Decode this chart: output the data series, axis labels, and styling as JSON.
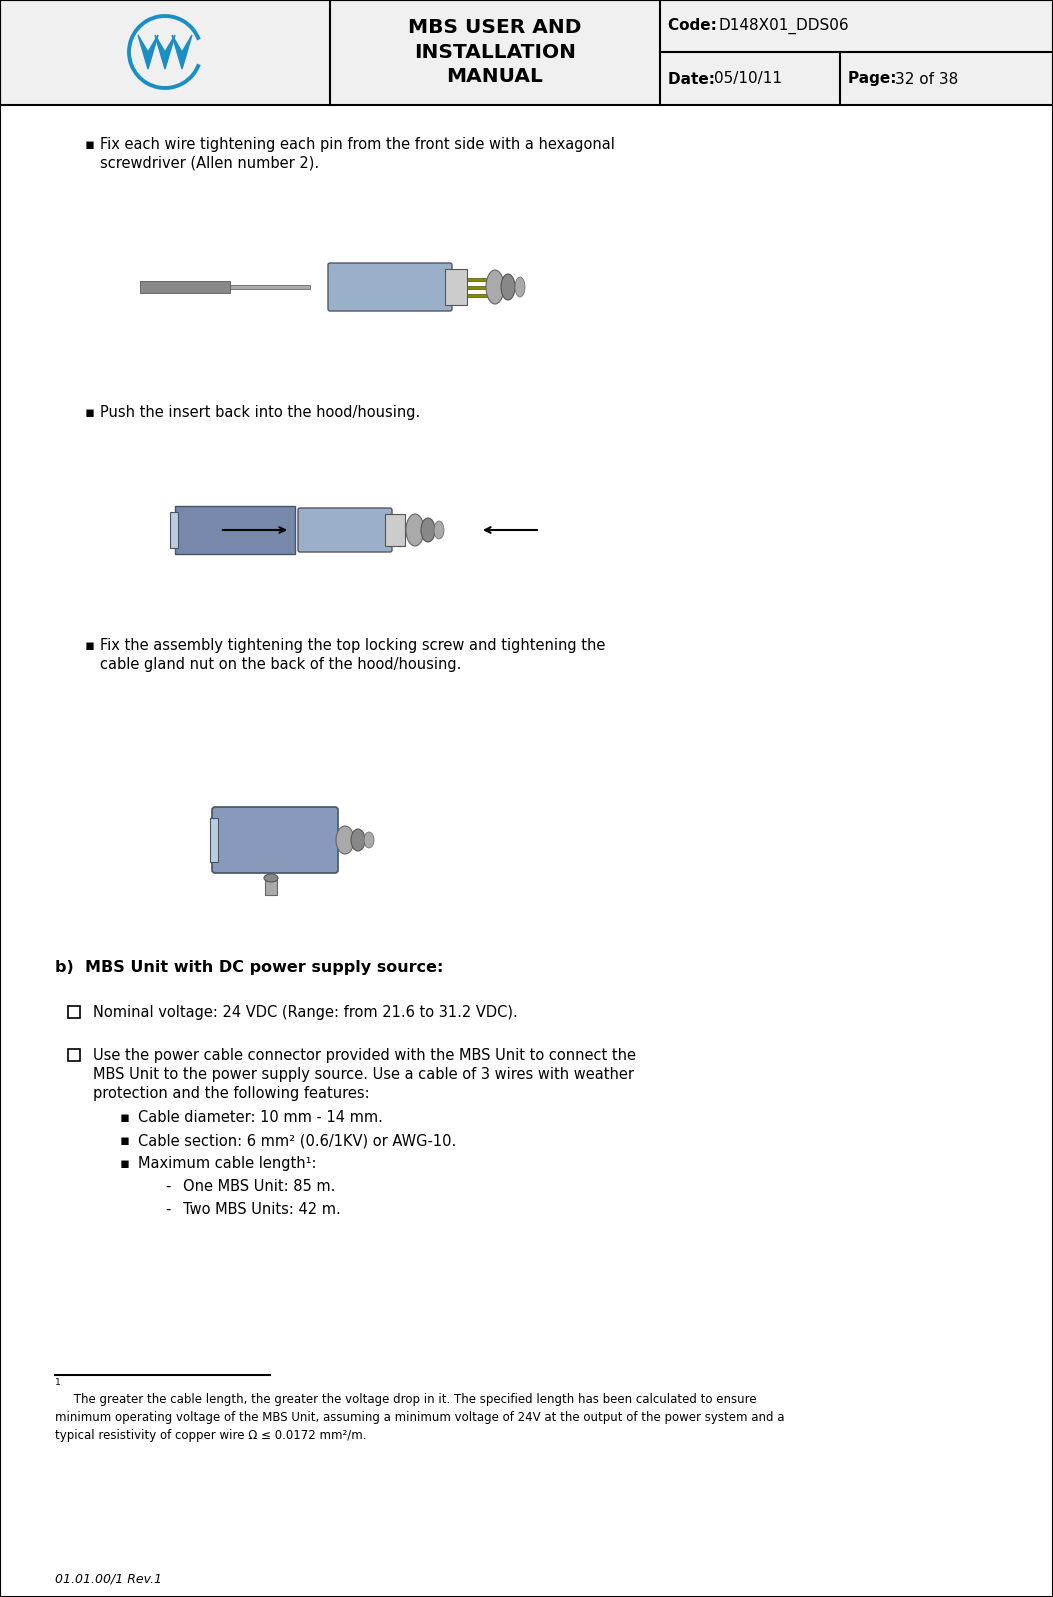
{
  "page_width": 10.53,
  "page_height": 15.97,
  "bg_color": "#ffffff",
  "header": {
    "title": "MBS USER AND\nINSTALLATION\nMANUAL",
    "code_label": "Code: ",
    "code_value": "D148X01_DDS06",
    "date_label": "Date: ",
    "date_value": "05/10/11",
    "page_label": "Page: ",
    "page_value": "32 of 38",
    "header_bg": "#f0f0f0"
  },
  "bullet1_text1": "Fix each wire tightening each pin from the front side with a hexagonal",
  "bullet1_text2": "screwdriver (Allen number 2).",
  "bullet2_text": "Push the insert back into the hood/housing.",
  "bullet3_text1": "Fix the assembly tightening the top locking screw and tightening the",
  "bullet3_text2": "cable gland nut on the back of the hood/housing.",
  "section_b_title": "b)  MBS Unit with DC power supply source:",
  "nominal_voltage_text": "Nominal voltage: 24 VDC (Range: from 21.6 to 31.2 VDC).",
  "use_power_text1": "Use the power cable connector provided with the MBS Unit to connect the",
  "use_power_text2": "MBS Unit to the power supply source. Use a cable of 3 wires with weather",
  "use_power_text3": "protection and the following features:",
  "bullet_cable_dia": "Cable diameter: 10 mm - 14 mm.",
  "bullet_cable_sec": "Cable section: 6 mm² (0.6/1KV) or AWG-10.",
  "bullet_max_cable": "Maximum cable length¹:",
  "sub_bullet1": "One MBS Unit: 85 m.",
  "sub_bullet2": "Two MBS Units: 42 m.",
  "footnote_superscript": "1",
  "footnote_text1": " The greater the cable length, the greater the voltage drop in it. The specified length has been calculated to ensure",
  "footnote_text2": "minimum operating voltage of the MBS Unit, assuming a minimum voltage of 24V at the output of the power system and a",
  "footnote_text3": "typical resistivity of copper wire Ω ≤ 0.0172 mm²/m.",
  "footer_text": "01.01.00/1 Rev.1",
  "logo_circle_color": "#1a8ec5",
  "logo_chevron_color": "#1a8ec5",
  "text_color": "#000000",
  "body_font_size": 10.5,
  "small_font_size": 8.5
}
